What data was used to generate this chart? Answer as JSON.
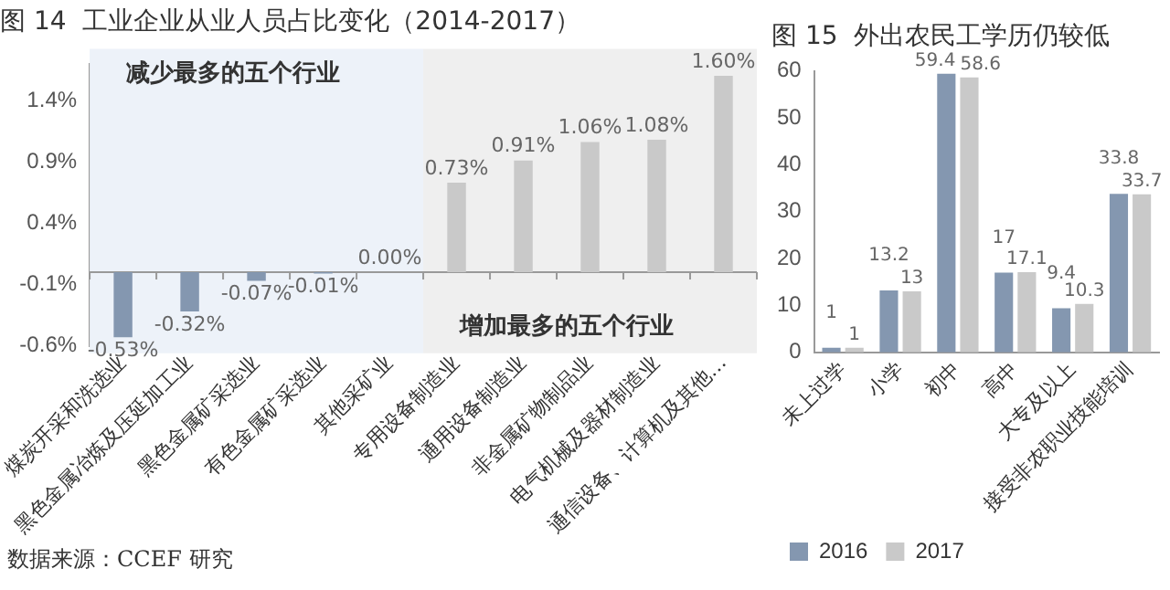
{
  "chart_data": [
    {
      "type": "bar",
      "title": "图 14  工业企业从业人员占比变化（2014-2017）",
      "categories": [
        "煤炭开采和洗选业",
        "黑色金属冶炼及压延加工业",
        "黑色金属矿采选业",
        "有色金属矿采选业",
        "其他采矿业",
        "专用设备制造业",
        "通用设备制造业",
        "非金属矿物制品业",
        "电气机械及器材制造业",
        "通信设备、计算机及其他…"
      ],
      "values": [
        -0.53,
        -0.32,
        -0.07,
        -0.01,
        0.0,
        0.73,
        0.91,
        1.06,
        1.08,
        1.6
      ],
      "colors": [
        "#8497b0",
        "#8497b0",
        "#8497b0",
        "#8497b0",
        "#8497b0",
        "#c9c9c9",
        "#c9c9c9",
        "#c9c9c9",
        "#c9c9c9",
        "#c9c9c9"
      ],
      "value_labels": [
        "-0.53%",
        "-0.32%",
        "-0.07%",
        "-0.01%",
        "0.00%",
        "0.73%",
        "0.91%",
        "1.06%",
        "1.08%",
        "1.60%"
      ],
      "ylim": [
        -0.6,
        1.7
      ],
      "yticks": [
        {
          "value": -0.6,
          "label": "-0.6%"
        },
        {
          "value": -0.1,
          "label": "-0.1%"
        },
        {
          "value": 0.4,
          "label": "0.4%"
        },
        {
          "value": 0.9,
          "label": "0.9%"
        },
        {
          "value": 1.4,
          "label": "1.4%"
        }
      ],
      "bands": [
        {
          "axis": "x",
          "from": "煤炭开采和洗选业",
          "to": "其他采矿业",
          "label": "减少最多的五个行业",
          "color": "#edf2f9"
        },
        {
          "axis": "x",
          "from": "专用设备制造业",
          "to": "通信设备、计算机及其他…",
          "label": "增加最多的五个行业",
          "color": "#efefef"
        }
      ],
      "annotations": [
        "数据来源：CCEF 研究"
      ],
      "grid": false,
      "legend": false
    },
    {
      "type": "bar",
      "title": "图 15  外出农民工学历仍较低",
      "categories": [
        "未上过学",
        "小学",
        "初中",
        "高中",
        "大专及以上",
        "接受非农职业技能培训"
      ],
      "series": [
        {
          "name": "2016",
          "color": "#8497b0",
          "values": [
            1,
            13.2,
            59.4,
            17,
            9.4,
            33.8
          ]
        },
        {
          "name": "2017",
          "color": "#c9c9c9",
          "values": [
            1,
            13,
            58.6,
            17.1,
            10.3,
            33.7
          ]
        }
      ],
      "ylim": [
        0,
        60
      ],
      "yticks": [
        0,
        10,
        20,
        30,
        40,
        50,
        60
      ],
      "data_labels": true,
      "grid": false,
      "legend": "bottom left"
    }
  ]
}
